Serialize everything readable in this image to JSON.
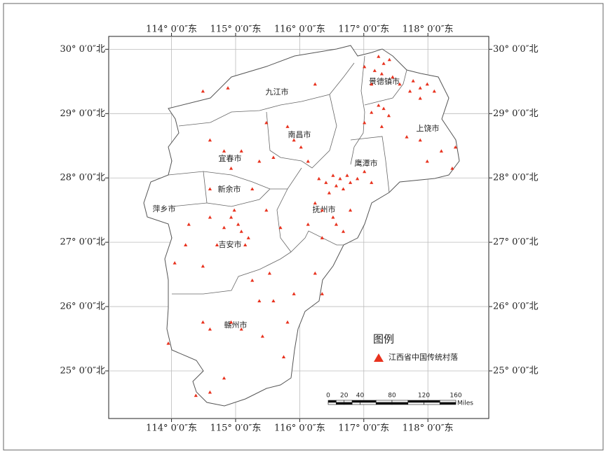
{
  "map": {
    "xlim": [
      113.02,
      118.95
    ],
    "ylim": [
      24.26,
      30.2
    ],
    "lon_ticks": [
      {
        "value": 114,
        "label": "114° 0′0″东"
      },
      {
        "value": 115,
        "label": "115° 0′0″东"
      },
      {
        "value": 116,
        "label": "116° 0′0″东"
      },
      {
        "value": 117,
        "label": "117° 0′0″东"
      },
      {
        "value": 118,
        "label": "118° 0′0″东"
      }
    ],
    "lat_ticks": [
      {
        "value": 30,
        "label": "30° 0′0″北"
      },
      {
        "value": 29,
        "label": "29° 0′0″北"
      },
      {
        "value": 28,
        "label": "28° 0′0″北"
      },
      {
        "value": 27,
        "label": "27° 0′0″北"
      },
      {
        "value": 26,
        "label": "26° 0′0″北"
      },
      {
        "value": 25,
        "label": "25° 0′0″北"
      }
    ],
    "cities": [
      "九江市",
      "景德镇市",
      "上饶市",
      "南昌市",
      "宜春市",
      "鹰潭市",
      "新余市",
      "萍乡市",
      "抚州市",
      "吉安市",
      "赣州市"
    ],
    "legend": {
      "title": "图例",
      "item": "江西省中国传统村落",
      "color": "#e8321e"
    },
    "scale_bar": {
      "ticks": [
        0,
        20,
        40,
        80,
        120,
        160
      ],
      "unit": "Miles"
    },
    "points": [
      [
        117.23,
        29.89
      ],
      [
        117.31,
        29.78
      ],
      [
        117.4,
        29.84
      ],
      [
        117.17,
        29.67
      ],
      [
        117.28,
        29.62
      ],
      [
        117.45,
        29.57
      ],
      [
        117.12,
        29.46
      ],
      [
        117.56,
        29.46
      ],
      [
        117.77,
        29.51
      ],
      [
        117.88,
        29.4
      ],
      [
        117.99,
        29.46
      ],
      [
        118.1,
        29.35
      ],
      [
        117.72,
        29.35
      ],
      [
        117.88,
        29.24
      ],
      [
        117.23,
        29.13
      ],
      [
        117.31,
        29.08
      ],
      [
        117.12,
        29.02
      ],
      [
        117.39,
        28.97
      ],
      [
        117.01,
        28.86
      ],
      [
        117.28,
        28.8
      ],
      [
        117.67,
        28.64
      ],
      [
        117.88,
        28.59
      ],
      [
        117.99,
        28.26
      ],
      [
        118.21,
        28.42
      ],
      [
        118.43,
        28.48
      ],
      [
        118.38,
        28.15
      ],
      [
        116.3,
        27.99
      ],
      [
        116.41,
        27.93
      ],
      [
        116.52,
        28.04
      ],
      [
        116.63,
        27.99
      ],
      [
        116.74,
        28.04
      ],
      [
        116.79,
        27.93
      ],
      [
        116.68,
        27.83
      ],
      [
        116.46,
        27.77
      ],
      [
        116.57,
        27.88
      ],
      [
        116.9,
        27.99
      ],
      [
        117.01,
        28.1
      ],
      [
        117.12,
        27.93
      ],
      [
        116.24,
        27.61
      ],
      [
        116.35,
        27.5
      ],
      [
        116.52,
        27.39
      ],
      [
        116.57,
        27.28
      ],
      [
        116.68,
        27.17
      ],
      [
        116.79,
        27.5
      ],
      [
        116.13,
        27.28
      ],
      [
        116.35,
        27.07
      ],
      [
        115.91,
        28.59
      ],
      [
        116.02,
        28.48
      ],
      [
        116.13,
        28.26
      ],
      [
        115.48,
        28.86
      ],
      [
        115.59,
        28.32
      ],
      [
        115.81,
        28.8
      ],
      [
        114.49,
        29.35
      ],
      [
        114.88,
        29.4
      ],
      [
        116.24,
        29.46
      ],
      [
        117.01,
        29.73
      ],
      [
        114.6,
        28.59
      ],
      [
        114.82,
        28.42
      ],
      [
        115.09,
        28.42
      ],
      [
        114.93,
        28.15
      ],
      [
        115.37,
        28.26
      ],
      [
        115.26,
        27.83
      ],
      [
        114.6,
        27.83
      ],
      [
        114.93,
        27.39
      ],
      [
        115.04,
        27.28
      ],
      [
        115.09,
        27.17
      ],
      [
        114.98,
        27.5
      ],
      [
        114.82,
        27.23
      ],
      [
        115.15,
        26.96
      ],
      [
        115.2,
        27.07
      ],
      [
        114.71,
        26.96
      ],
      [
        114.6,
        27.39
      ],
      [
        114.27,
        27.28
      ],
      [
        114.05,
        26.68
      ],
      [
        114.22,
        26.96
      ],
      [
        114.49,
        26.63
      ],
      [
        115.48,
        27.5
      ],
      [
        115.7,
        27.23
      ],
      [
        115.26,
        26.41
      ],
      [
        115.53,
        26.52
      ],
      [
        115.37,
        26.09
      ],
      [
        115.59,
        26.09
      ],
      [
        115.91,
        26.2
      ],
      [
        115.81,
        25.76
      ],
      [
        114.93,
        25.76
      ],
      [
        114.6,
        25.65
      ],
      [
        115.09,
        25.65
      ],
      [
        115.42,
        25.54
      ],
      [
        115.75,
        25.22
      ],
      [
        114.6,
        24.67
      ],
      [
        114.82,
        24.89
      ],
      [
        114.38,
        24.62
      ],
      [
        114.49,
        25.76
      ],
      [
        113.95,
        25.43
      ],
      [
        116.24,
        26.52
      ],
      [
        116.35,
        26.2
      ]
    ]
  }
}
